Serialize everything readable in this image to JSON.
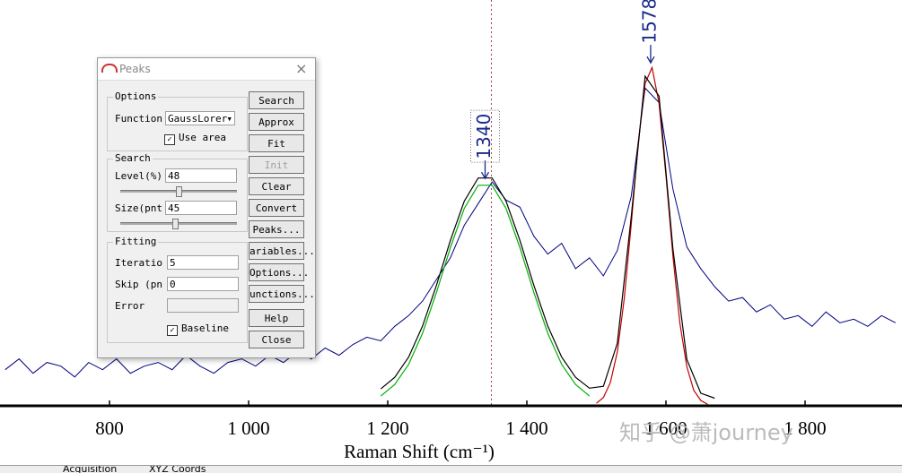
{
  "chart_data": {
    "type": "line",
    "x_label": "Raman Shift (cm⁻¹)",
    "xlim": [
      643,
      1940
    ],
    "ylim": [
      0,
      100
    ],
    "xticks": [
      800,
      {
        "value": 1000,
        "label": "1 000"
      },
      {
        "value": 1200,
        "label": "1 200"
      },
      {
        "value": 1400,
        "label": "1 400"
      },
      {
        "value": 1600,
        "label": "1 600"
      },
      {
        "value": 1800,
        "label": "1 800"
      }
    ],
    "cursor_x": 1349,
    "annotations": [
      {
        "x": 1340,
        "y": 62
      },
      {
        "x": 1578,
        "y": 94
      }
    ],
    "series": [
      {
        "color": "#000080",
        "x": [
          650,
          670,
          690,
          710,
          730,
          750,
          770,
          790,
          810,
          830,
          850,
          870,
          890,
          910,
          930,
          950,
          970,
          990,
          1010,
          1030,
          1050,
          1070,
          1090,
          1110,
          1130,
          1150,
          1170,
          1190,
          1210,
          1230,
          1250,
          1270,
          1290,
          1310,
          1330,
          1350,
          1370,
          1390,
          1410,
          1430,
          1450,
          1470,
          1490,
          1510,
          1530,
          1550,
          1570,
          1590,
          1610,
          1630,
          1650,
          1670,
          1690,
          1710,
          1730,
          1750,
          1770,
          1790,
          1810,
          1830,
          1850,
          1870,
          1890,
          1910,
          1930
        ],
        "values": [
          10,
          13,
          9,
          12,
          11,
          8,
          12,
          10,
          13,
          9,
          11,
          12,
          10,
          14,
          11,
          9,
          12,
          13,
          11,
          14,
          12,
          15,
          13,
          16,
          14,
          17,
          19,
          18,
          22,
          25,
          29,
          35,
          41,
          50,
          56,
          62,
          57,
          55,
          47,
          42,
          45,
          38,
          41,
          36,
          43,
          58,
          88,
          84,
          60,
          44,
          38,
          33,
          29,
          30,
          26,
          28,
          24,
          25,
          22,
          26,
          23,
          24,
          22,
          25,
          23
        ]
      },
      {
        "color": "#00b000",
        "x": [
          1190,
          1210,
          1230,
          1250,
          1270,
          1290,
          1310,
          1330,
          1350,
          1370,
          1390,
          1410,
          1430,
          1450,
          1470,
          1490
        ],
        "values": [
          2.7,
          5.9,
          11.5,
          20.1,
          31.4,
          43.8,
          54.7,
          61.1,
          61.1,
          54.7,
          43.8,
          31.4,
          20.1,
          11.5,
          5.9,
          2.7
        ]
      },
      {
        "color": "#c00000",
        "x": [
          1500,
          1510,
          1520,
          1530,
          1540,
          1550,
          1560,
          1570,
          1580,
          1590,
          1600,
          1610,
          1620,
          1630,
          1640,
          1650,
          1660
        ],
        "values": [
          0.7,
          2.3,
          6.4,
          14.9,
          29.6,
          50.2,
          72.5,
          89.3,
          93.7,
          83.8,
          63.8,
          41.4,
          22.9,
          10.8,
          4.3,
          1.5,
          0.4
        ]
      },
      {
        "color": "#000000",
        "x": [
          1190,
          1210,
          1230,
          1250,
          1270,
          1290,
          1310,
          1330,
          1350,
          1370,
          1390,
          1410,
          1430,
          1450,
          1470,
          1490,
          1510,
          1530,
          1550,
          1570,
          1590,
          1610,
          1630,
          1650,
          1670
        ],
        "values": [
          4.7,
          7.9,
          13.5,
          22.1,
          33.4,
          45.8,
          56.7,
          63.1,
          63.1,
          56.7,
          45.8,
          33.4,
          22.1,
          13.5,
          7.9,
          4.9,
          5.4,
          17.3,
          52.3,
          91.3,
          85.8,
          43.4,
          12.8,
          3.5,
          2.1
        ]
      }
    ]
  },
  "watermark": "知乎 @萧journey",
  "tabs": [
    "Acquisition",
    "XYZ Coords"
  ],
  "dialog": {
    "title": "Peaks",
    "options": {
      "legend": "Options",
      "function_label": "Function",
      "function_value": "GaussLorer",
      "use_area": "Use area"
    },
    "search": {
      "legend": "Search",
      "level_label": "Level(%)",
      "level_value": "48",
      "size_label": "Size(pnt",
      "size_value": "45"
    },
    "fitting": {
      "legend": "Fitting",
      "iter_label": "Iteratio",
      "iter_value": "5",
      "skip_label": "Skip (pn",
      "skip_value": "0",
      "error_label": "Error",
      "baseline": "Baseline"
    },
    "buttons": [
      "Search",
      "Approx",
      "Fit",
      "Init",
      "Clear",
      "Convert",
      "Peaks...",
      "ariables...",
      "Options...",
      "unctions...",
      "Help",
      "Close"
    ]
  }
}
